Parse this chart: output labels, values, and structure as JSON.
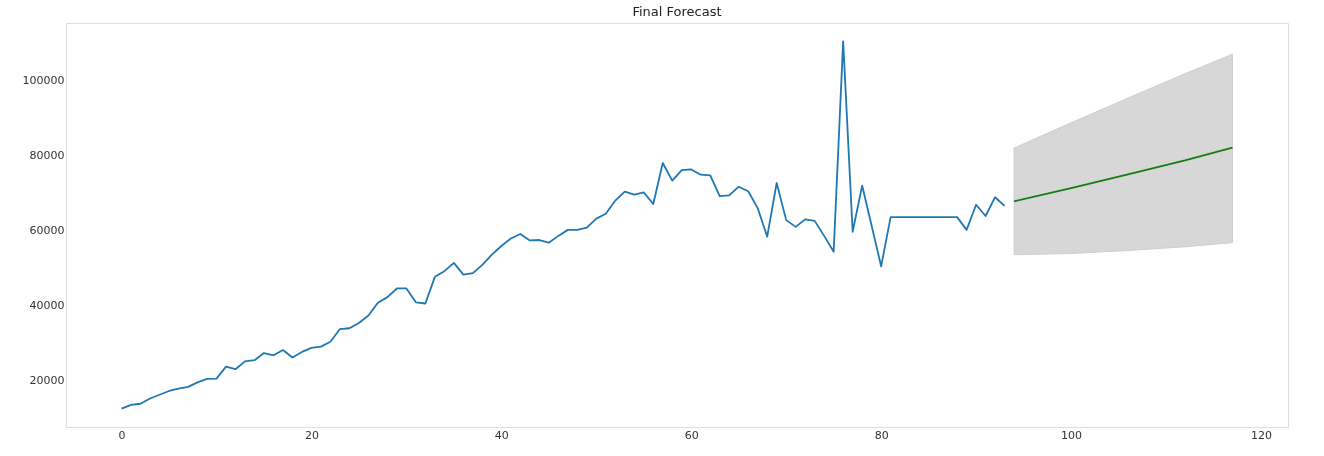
{
  "chart_data": {
    "type": "line",
    "title": "Final Forecast",
    "series": [
      {
        "color": "#1f77b4",
        "x": [
          0,
          1,
          2,
          3,
          4,
          5,
          6,
          7,
          8,
          9,
          10,
          11,
          12,
          13,
          14,
          15,
          16,
          17,
          18,
          19,
          20,
          21,
          22,
          23,
          24,
          25,
          26,
          27,
          28,
          29,
          30,
          31,
          32,
          33,
          34,
          35,
          36,
          37,
          38,
          39,
          40,
          41,
          42,
          43,
          44,
          45,
          46,
          47,
          48,
          49,
          50,
          51,
          52,
          53,
          54,
          55,
          56,
          57,
          58,
          59,
          60,
          61,
          62,
          63,
          64,
          65,
          66,
          67,
          68,
          69,
          70,
          71,
          72,
          73,
          74,
          75,
          76,
          77,
          78,
          79,
          80,
          81,
          82,
          83,
          84,
          85,
          86,
          87,
          88,
          89,
          90,
          91,
          92,
          93
        ],
        "values": [
          12500,
          13500,
          13800,
          15200,
          16200,
          17200,
          17800,
          18300,
          19500,
          20400,
          20500,
          23700,
          23000,
          25100,
          25400,
          27300,
          26700,
          28100,
          26100,
          27600,
          28700,
          29000,
          30300,
          33700,
          33900,
          35300,
          37300,
          40700,
          42200,
          44500,
          44500,
          40800,
          40500,
          47600,
          49100,
          51300,
          48200,
          48600,
          50800,
          53500,
          55800,
          57800,
          59000,
          57300,
          57400,
          56700,
          58500,
          60100,
          60100,
          60700,
          63100,
          64400,
          67900,
          70300,
          69500,
          70100,
          67000,
          77900,
          73200,
          76000,
          76200,
          74800,
          74600,
          69100,
          69300,
          71600,
          70400,
          65900,
          58300,
          72600,
          62700,
          60900,
          62900,
          62500,
          58500,
          54300,
          110300,
          59600,
          71900,
          61200,
          50400,
          63500,
          63500,
          63500,
          63500,
          63500,
          63500,
          63500,
          63500,
          60100,
          66800,
          63800,
          68800,
          66500
        ]
      },
      {
        "color": "#137d13",
        "x": [
          94,
          100,
          106,
          112,
          117
        ],
        "values": [
          67700,
          71200,
          74900,
          78600,
          82000
        ],
        "lower": [
          53500,
          53800,
          54600,
          55600,
          56700
        ],
        "upper": [
          81900,
          88600,
          95200,
          101700,
          106900
        ]
      }
    ],
    "xlim": [
      -5.85,
      122.85
    ],
    "xticks": [
      0,
      20,
      40,
      60,
      80,
      100,
      120
    ],
    "ylim": [
      7610,
      115190
    ],
    "yticks": [
      20000,
      40000,
      60000,
      80000,
      100000
    ],
    "grid": false
  }
}
